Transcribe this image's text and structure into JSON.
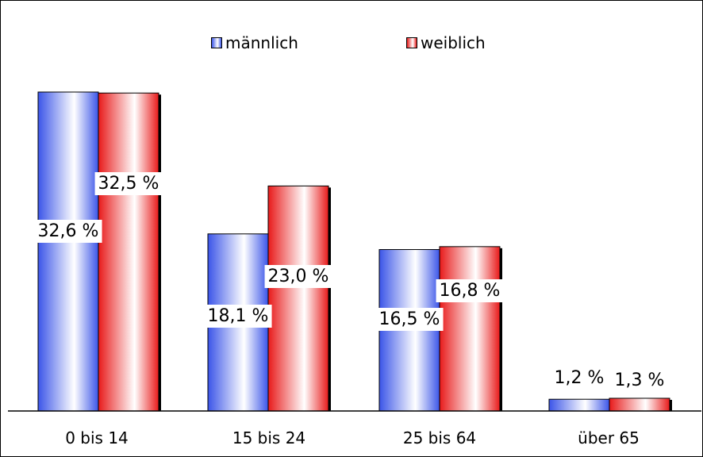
{
  "chart_data": {
    "type": "bar",
    "categories": [
      "0 bis 14",
      "15 bis 24",
      "25 bis 64",
      "über 65"
    ],
    "series": [
      {
        "name": "männlich",
        "values": [
          32.6,
          18.1,
          16.5,
          1.2
        ],
        "labels": [
          "32,6 %",
          "18,1 %",
          "16,5 %",
          "1,2 %"
        ],
        "color": "#3b55e8"
      },
      {
        "name": "weiblich",
        "values": [
          32.5,
          23.0,
          16.8,
          1.3
        ],
        "labels": [
          "32,5 %",
          "23,0 %",
          "16,8 %",
          "1,3 %"
        ],
        "color": "#e81a1a"
      }
    ],
    "ylim": [
      0,
      32.6
    ],
    "grid": false,
    "legend": "top"
  }
}
